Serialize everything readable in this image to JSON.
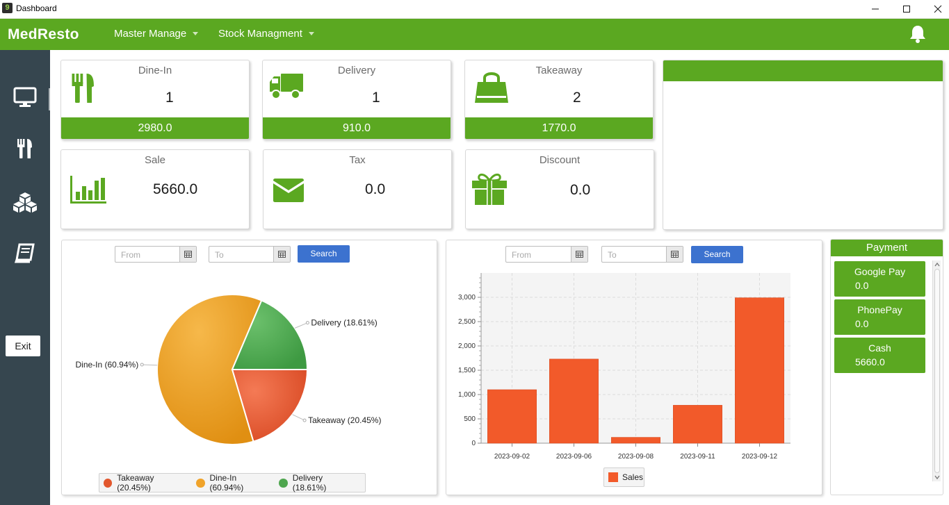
{
  "window": {
    "title": "Dashboard"
  },
  "topbar": {
    "brand": "MedResto",
    "menus": [
      {
        "label": "Master Manage"
      },
      {
        "label": "Stock Managment"
      }
    ]
  },
  "sidebar": {
    "exit_label": "Exit"
  },
  "cards": {
    "dinein": {
      "title": "Dine-In",
      "count": "1",
      "amount": "2980.0"
    },
    "delivery": {
      "title": "Delivery",
      "count": "1",
      "amount": "910.0"
    },
    "takeaway": {
      "title": "Takeaway",
      "count": "2",
      "amount": "1770.0"
    },
    "sale": {
      "title": "Sale",
      "value": "5660.0"
    },
    "tax": {
      "title": "Tax",
      "value": "0.0"
    },
    "discount": {
      "title": "Discount",
      "value": "0.0"
    }
  },
  "filters": {
    "from_placeholder": "From",
    "to_placeholder": "To",
    "search_label": "Search"
  },
  "chart_data": [
    {
      "type": "pie",
      "slices": [
        {
          "label": "Takeaway (20.45%)",
          "legend": "Takeaway (20.45%)",
          "value": 20.45,
          "color": "#e2572d"
        },
        {
          "label": "Dine-In (60.94%)",
          "legend": "Dine-In (60.94%)",
          "value": 60.94,
          "color": "#f0a32a"
        },
        {
          "label": "Delivery (18.61%)",
          "legend": "Delivery (18.61%)",
          "value": 18.61,
          "color": "#4fa64f"
        }
      ],
      "legend_position": "bottom"
    },
    {
      "type": "bar",
      "categories": [
        "2023-09-02",
        "2023-09-06",
        "2023-09-08",
        "2023-09-11",
        "2023-09-12"
      ],
      "series": [
        {
          "name": "Sales",
          "values": [
            1100,
            1730,
            120,
            780,
            2990
          ],
          "color": "#f25a2a"
        }
      ],
      "yticks": [
        "0",
        "500",
        "1,000",
        "1,500",
        "2,000",
        "2,500",
        "3,000"
      ],
      "ylim": [
        0,
        3500
      ],
      "grid": true,
      "legend_position": "bottom"
    }
  ],
  "payment": {
    "title": "Payment",
    "items": [
      {
        "name": "Google Pay",
        "value": "0.0"
      },
      {
        "name": "PhonePay",
        "value": "0.0"
      },
      {
        "name": "Cash",
        "value": "5660.0"
      }
    ]
  },
  "colors": {
    "brand_green": "#5ba821",
    "sidebar": "#36464f",
    "search_blue": "#3c72cf"
  }
}
